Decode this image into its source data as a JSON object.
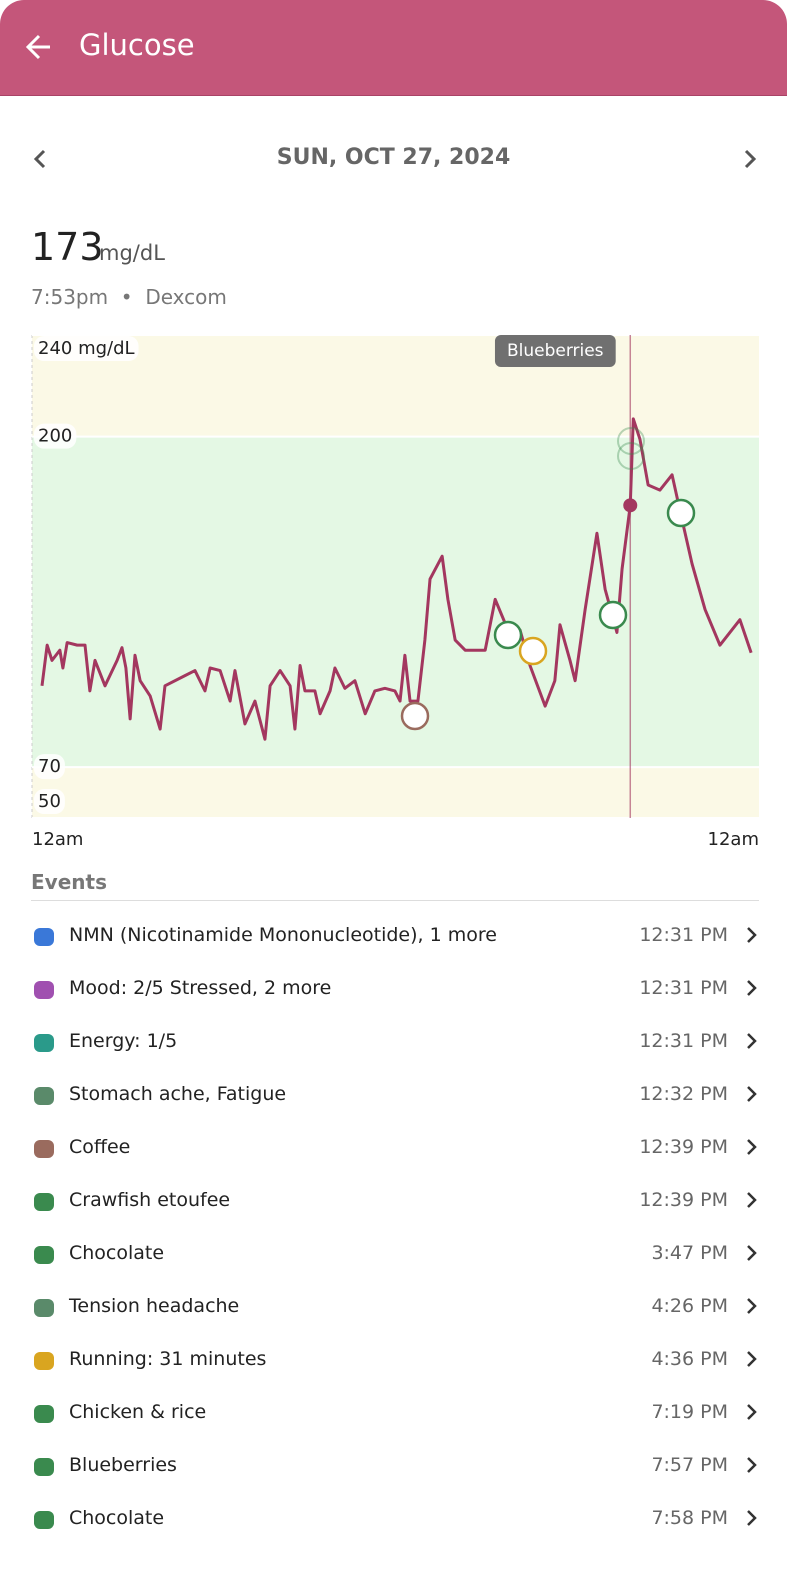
{
  "header": {
    "title": "Glucose"
  },
  "date": "SUN, OCT 27, 2024",
  "reading": {
    "value": 173,
    "unit": "mg/dL",
    "time": "7:53pm",
    "source": "Dexcom"
  },
  "chart_data": {
    "type": "line",
    "tooltip": "Blueberries",
    "xlim": [
      0,
      24
    ],
    "xticks": [
      {
        "value": 0,
        "label": "12am"
      },
      {
        "value": 24,
        "label": "12am"
      }
    ],
    "ylim": [
      50,
      240
    ],
    "yticks": [
      {
        "value": 240,
        "label": "240 mg/dL"
      },
      200,
      70,
      50
    ],
    "series": [
      {
        "name": "Glucose",
        "color": "#a3375f",
        "x": [
          0.33,
          0.5,
          0.66,
          0.92,
          1.02,
          1.16,
          1.49,
          1.75,
          1.91,
          2.08,
          2.41,
          2.81,
          2.97,
          3.1,
          3.24,
          3.4,
          3.57,
          3.9,
          4.23,
          4.39,
          5.05,
          5.38,
          5.71,
          5.88,
          6.21,
          6.54,
          6.7,
          7.03,
          7.36,
          7.69,
          7.86,
          8.19,
          8.52,
          8.68,
          8.85,
          9.01,
          9.34,
          9.51,
          9.84,
          10.0,
          10.33,
          10.66,
          11.0,
          11.32,
          11.65,
          11.98,
          12.15,
          12.31,
          12.48,
          12.74,
          12.97,
          13.14,
          13.54,
          13.73,
          13.97,
          14.3,
          14.96,
          15.29,
          15.78,
          16.11,
          16.44,
          16.94,
          17.26,
          17.43,
          17.76,
          17.93,
          18.26,
          18.65,
          18.92,
          19.31,
          19.48,
          19.75,
          19.85,
          20.07,
          20.34,
          20.73,
          21.13,
          21.39,
          21.79,
          22.22,
          22.71,
          23.37,
          23.74
        ],
        "values": [
          102,
          118,
          112,
          116,
          109,
          119,
          118,
          118,
          100,
          112,
          102,
          112,
          117,
          109,
          89,
          114,
          104,
          98,
          85,
          102,
          106,
          108,
          100,
          109,
          108,
          96,
          108,
          87,
          96,
          81,
          102,
          108,
          102,
          85,
          110,
          100,
          100,
          91,
          100,
          109,
          101,
          104,
          91,
          100,
          101,
          100,
          96,
          114,
          96,
          96,
          120,
          144,
          153,
          136,
          120,
          116,
          116,
          136,
          122,
          124,
          110,
          94,
          104,
          126,
          112,
          104,
          132,
          162,
          140,
          123,
          148,
          173,
          207,
          199,
          181,
          179,
          185,
          171,
          150,
          132,
          118,
          128,
          115
        ]
      }
    ]
  },
  "events": {
    "title": "Events",
    "rows": [
      {
        "label": "NMN (Nicotinamide Mononucleotide), 1 more",
        "time": "12:31 PM"
      },
      {
        "label": "Mood: 2/5 Stressed, 2 more",
        "time": "12:31 PM"
      },
      {
        "label": "Energy: 1/5",
        "time": "12:31 PM"
      },
      {
        "label": "Stomach ache, Fatigue",
        "time": "12:32 PM"
      },
      {
        "label": "Coffee",
        "time": "12:39 PM"
      },
      {
        "label": "Crawfish etoufee",
        "time": "12:39 PM"
      },
      {
        "label": "Chocolate",
        "time": "3:47 PM"
      },
      {
        "label": "Tension headache",
        "time": "4:26 PM"
      },
      {
        "label": "Running: 31 minutes",
        "time": "4:36 PM"
      },
      {
        "label": "Chicken & rice",
        "time": "7:19 PM"
      },
      {
        "label": "Blueberries",
        "time": "7:57 PM"
      },
      {
        "label": "Chocolate",
        "time": "7:58 PM"
      }
    ]
  }
}
